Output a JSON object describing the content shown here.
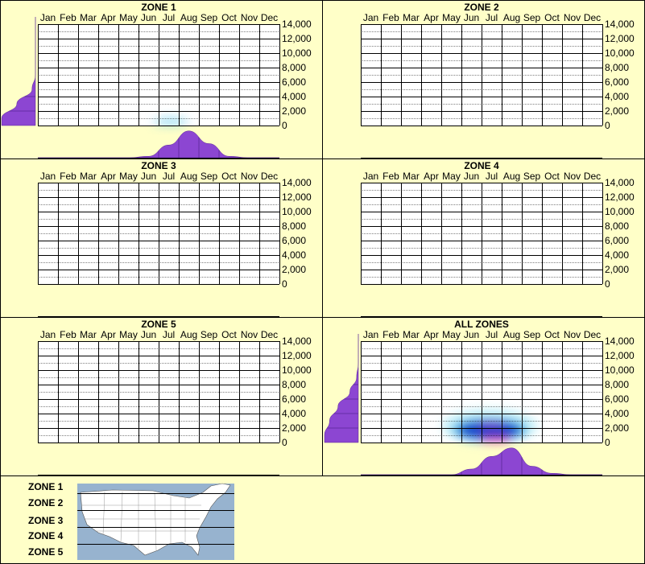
{
  "chart_data": [
    {
      "type": "heatmap",
      "title": "ZONE 1",
      "categories": [
        "Jan",
        "Feb",
        "Mar",
        "Apr",
        "May",
        "Jun",
        "Jul",
        "Aug",
        "Sep",
        "Oct",
        "Nov",
        "Dec"
      ],
      "y_ticks": [
        "0",
        "2,000",
        "4,000",
        "6,000",
        "8,000",
        "10,000",
        "12,000",
        "14,000"
      ],
      "ylim": [
        0,
        14000
      ],
      "blobs": [
        {
          "month": 7.1,
          "elev": 500,
          "spread_month": 0.9,
          "spread_elev": 500,
          "color": "#5ac8e8",
          "opacity": 0.6
        },
        {
          "month": 7.1,
          "elev": 900,
          "spread_month": 0.5,
          "spread_elev": 350,
          "color": "#a0e4f4",
          "opacity": 0.6
        }
      ],
      "month_profile": [
        0,
        0,
        0,
        0,
        0,
        0.05,
        0.45,
        0.95,
        0.5,
        0.05,
        0,
        0
      ],
      "elev_profile": [
        1.0,
        0.55,
        0.1,
        0,
        0,
        0,
        0,
        0
      ]
    },
    {
      "type": "heatmap",
      "title": "ZONE 2",
      "categories": [
        "Jan",
        "Feb",
        "Mar",
        "Apr",
        "May",
        "Jun",
        "Jul",
        "Aug",
        "Sep",
        "Oct",
        "Nov",
        "Dec"
      ],
      "y_ticks": [
        "0",
        "2,000",
        "4,000",
        "6,000",
        "8,000",
        "10,000",
        "12,000",
        "14,000"
      ],
      "ylim": [
        0,
        14000
      ],
      "blobs": [],
      "month_profile": [],
      "elev_profile": []
    },
    {
      "type": "heatmap",
      "title": "ZONE 3",
      "categories": [
        "Jan",
        "Feb",
        "Mar",
        "Apr",
        "May",
        "Jun",
        "Jul",
        "Aug",
        "Sep",
        "Oct",
        "Nov",
        "Dec"
      ],
      "y_ticks": [
        "0",
        "2,000",
        "4,000",
        "6,000",
        "8,000",
        "10,000",
        "12,000",
        "14,000"
      ],
      "ylim": [
        0,
        14000
      ],
      "blobs": [],
      "month_profile": [],
      "elev_profile": []
    },
    {
      "type": "heatmap",
      "title": "ZONE 4",
      "categories": [
        "Jan",
        "Feb",
        "Mar",
        "Apr",
        "May",
        "Jun",
        "Jul",
        "Aug",
        "Sep",
        "Oct",
        "Nov",
        "Dec"
      ],
      "y_ticks": [
        "0",
        "2,000",
        "4,000",
        "6,000",
        "8,000",
        "10,000",
        "12,000",
        "14,000"
      ],
      "ylim": [
        0,
        14000
      ],
      "blobs": [],
      "month_profile": [],
      "elev_profile": []
    },
    {
      "type": "heatmap",
      "title": "ZONE 5",
      "categories": [
        "Jan",
        "Feb",
        "Mar",
        "Apr",
        "May",
        "Jun",
        "Jul",
        "Aug",
        "Sep",
        "Oct",
        "Nov",
        "Dec"
      ],
      "y_ticks": [
        "0",
        "2,000",
        "4,000",
        "6,000",
        "8,000",
        "10,000",
        "12,000",
        "14,000"
      ],
      "ylim": [
        0,
        14000
      ],
      "blobs": [],
      "month_profile": [],
      "elev_profile": []
    },
    {
      "type": "heatmap",
      "title": "ALL ZONES",
      "categories": [
        "Jan",
        "Feb",
        "Mar",
        "Apr",
        "May",
        "Jun",
        "Jul",
        "Aug",
        "Sep",
        "Oct",
        "Nov",
        "Dec"
      ],
      "y_ticks": [
        "0",
        "2,000",
        "4,000",
        "6,000",
        "8,000",
        "10,000",
        "12,000",
        "14,000"
      ],
      "ylim": [
        0,
        14000
      ],
      "blobs": [
        {
          "month": 6.9,
          "elev": 2300,
          "spread_month": 2.4,
          "spread_elev": 2400,
          "color": "#a0e8f4",
          "opacity": 0.55
        },
        {
          "month": 6.9,
          "elev": 1800,
          "spread_month": 1.9,
          "spread_elev": 1700,
          "color": "#3cb4e4",
          "opacity": 0.75
        },
        {
          "month": 6.9,
          "elev": 1700,
          "spread_month": 1.6,
          "spread_elev": 1300,
          "color": "#0a32c8",
          "opacity": 0.9
        },
        {
          "month": 7.0,
          "elev": 2600,
          "spread_month": 0.7,
          "spread_elev": 350,
          "color": "#9632c8",
          "opacity": 0.9
        },
        {
          "month": 7.2,
          "elev": 300,
          "spread_month": 0.8,
          "spread_elev": 250,
          "color": "#ff1e96",
          "opacity": 0.95
        }
      ],
      "month_profile": [
        0,
        0,
        0,
        0,
        0,
        0.2,
        0.65,
        0.95,
        0.3,
        0.05,
        0,
        0
      ],
      "elev_profile": [
        1.0,
        0.85,
        0.6,
        0.25,
        0.05,
        0,
        0,
        0
      ]
    }
  ],
  "legend": {
    "zones": [
      "ZONE 1",
      "ZONE 2",
      "ZONE 3",
      "ZONE 4",
      "ZONE 5"
    ],
    "map_icon": "us-map-icon"
  },
  "colors": {
    "background": "#ffffc8",
    "grid": "#000000",
    "fill": "#8c46d2",
    "map_water": "#97b3cf",
    "map_land": "#ffffff"
  }
}
